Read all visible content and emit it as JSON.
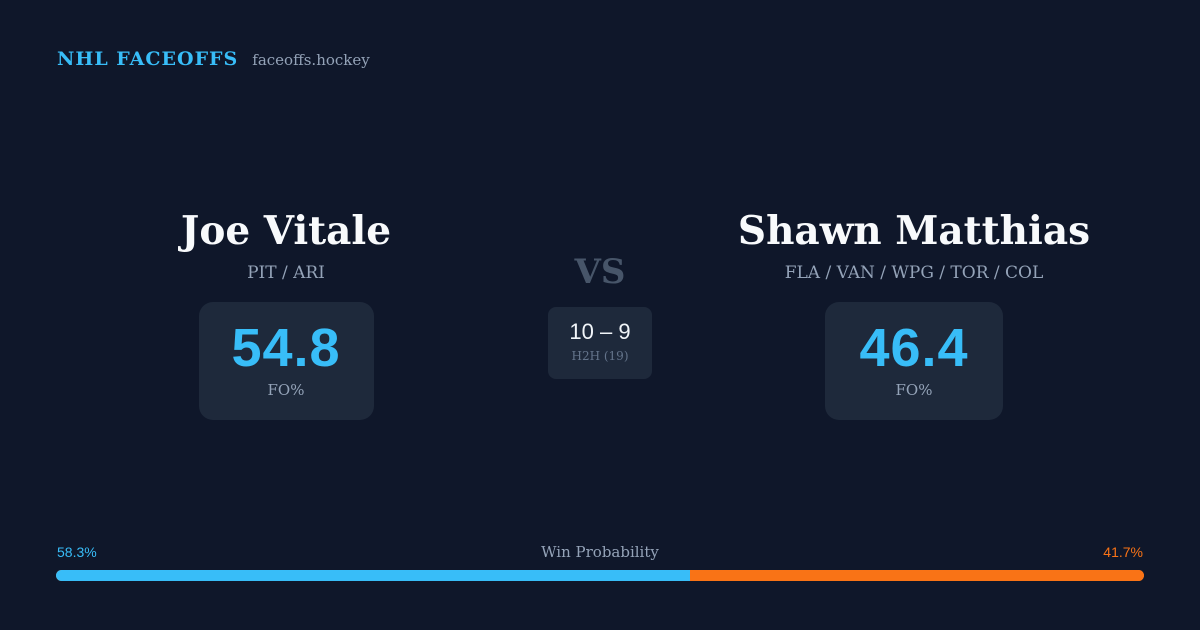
{
  "brand": {
    "name": "NHL FACEOFFS",
    "url": "faceoffs.hockey"
  },
  "player_left": {
    "name": "Joe Vitale",
    "teams": "PIT / ARI",
    "fo_pct": "54.8",
    "fo_label": "FO%"
  },
  "player_right": {
    "name": "Shawn Matthias",
    "teams": "FLA / VAN / WPG / TOR / COL",
    "fo_pct": "46.4",
    "fo_label": "FO%"
  },
  "matchup": {
    "vs_label": "VS",
    "h2h_score": "10 – 9",
    "h2h_label": "H2H (19)"
  },
  "win_probability": {
    "title": "Win Probability",
    "left_label": "58.3%",
    "right_label": "41.7%",
    "left_value": 58.3,
    "right_value": 41.7,
    "left_color": "#38bdf8",
    "right_color": "#f97316"
  }
}
